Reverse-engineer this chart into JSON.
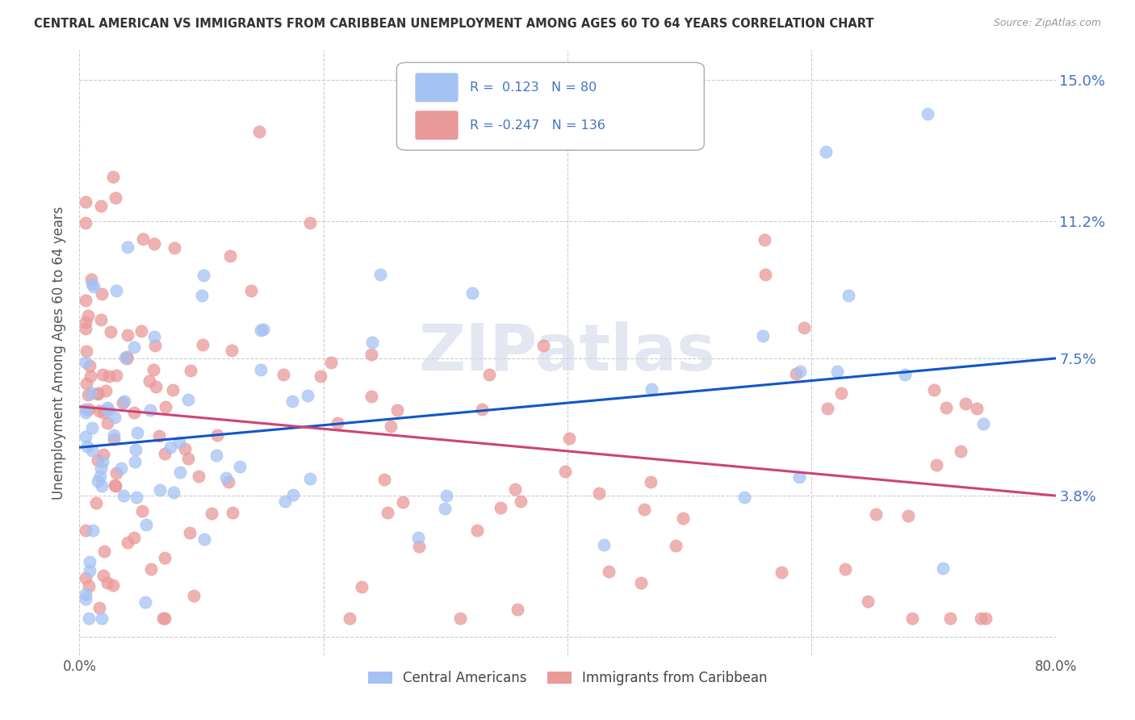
{
  "title": "CENTRAL AMERICAN VS IMMIGRANTS FROM CARIBBEAN UNEMPLOYMENT AMONG AGES 60 TO 64 YEARS CORRELATION CHART",
  "source": "Source: ZipAtlas.com",
  "ylabel": "Unemployment Among Ages 60 to 64 years",
  "xlim": [
    0.0,
    0.8
  ],
  "ylim": [
    -0.005,
    0.158
  ],
  "yticks": [
    0.0,
    0.038,
    0.075,
    0.112,
    0.15
  ],
  "ytick_labels": [
    "",
    "3.8%",
    "7.5%",
    "11.2%",
    "15.0%"
  ],
  "xticks": [
    0.0,
    0.2,
    0.4,
    0.6,
    0.8
  ],
  "xtick_labels": [
    "0.0%",
    "",
    "",
    "",
    "80.0%"
  ],
  "blue_R": 0.123,
  "blue_N": 80,
  "pink_R": -0.247,
  "pink_N": 136,
  "blue_color": "#a4c2f4",
  "pink_color": "#ea9999",
  "blue_line_color": "#1155cc",
  "pink_line_color": "#cc4477",
  "legend_blue_label": "Central Americans",
  "legend_pink_label": "Immigrants from Caribbean",
  "watermark": "ZIPatlas",
  "blue_line_y0": 0.051,
  "blue_line_y1": 0.075,
  "pink_line_y0": 0.062,
  "pink_line_y1": 0.038
}
